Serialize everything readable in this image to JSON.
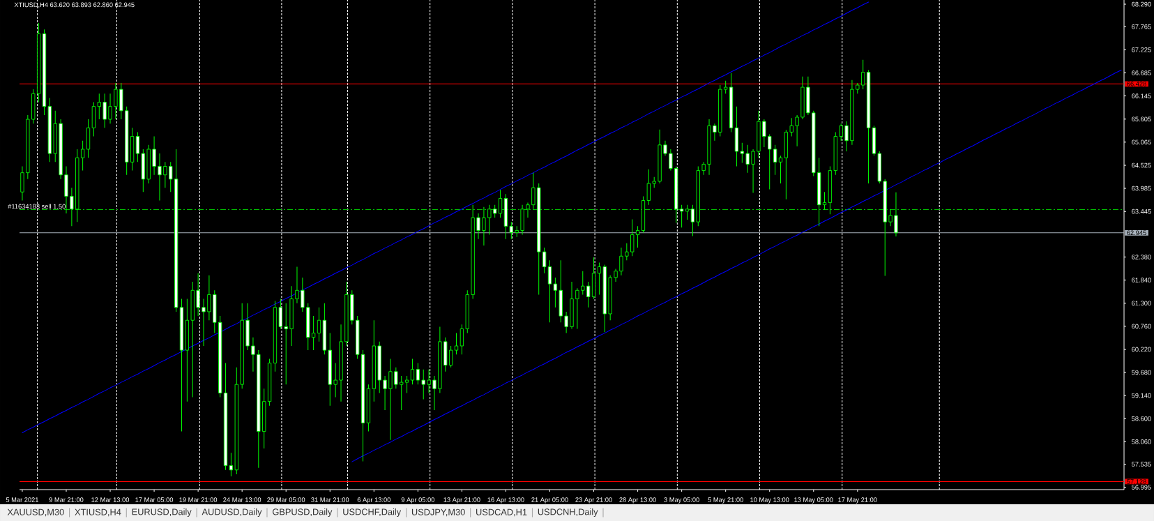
{
  "chart_data": {
    "type": "candlestick",
    "title": "XTIUSD,H4 63.620 63.893 62.860 62.945",
    "color": "#00ff00",
    "categories": [
      "5 Mar 2021",
      null,
      null,
      null,
      null,
      null,
      null,
      null,
      "9 Mar 21:00",
      null,
      null,
      null,
      null,
      null,
      null,
      null,
      "12 Mar 13:00",
      null,
      null,
      null,
      null,
      null,
      null,
      null,
      "17 Mar 05:00",
      null,
      null,
      null,
      null,
      null,
      null,
      null,
      "19 Mar 21:00",
      null,
      null,
      null,
      null,
      null,
      null,
      null,
      "24 Mar 13:00",
      null,
      null,
      null,
      null,
      null,
      null,
      null,
      "29 Mar 05:00",
      null,
      null,
      null,
      null,
      null,
      null,
      null,
      "31 Mar 21:00",
      null,
      null,
      null,
      null,
      null,
      null,
      null,
      "6 Apr 13:00",
      null,
      null,
      null,
      null,
      null,
      null,
      null,
      "9 Apr 05:00",
      null,
      null,
      null,
      null,
      null,
      null,
      null,
      "13 Apr 21:00",
      null,
      null,
      null,
      null,
      null,
      null,
      null,
      "16 Apr 13:00",
      null,
      null,
      null,
      null,
      null,
      null,
      null,
      "21 Apr 05:00",
      null,
      null,
      null,
      null,
      null,
      null,
      null,
      "23 Apr 21:00",
      null,
      null,
      null,
      null,
      null,
      null,
      null,
      "28 Apr 13:00",
      null,
      null,
      null,
      null,
      null,
      null,
      null,
      "3 May 05:00",
      null,
      null,
      null,
      null,
      null,
      null,
      null,
      "5 May 21:00",
      null,
      null,
      null,
      null,
      null,
      null,
      null,
      "10 May 13:00",
      null,
      null,
      null,
      null,
      null,
      null,
      null,
      "13 May 05:00",
      null,
      null,
      null,
      null,
      null,
      null,
      null,
      "17 May 21:00",
      null,
      null,
      null,
      null,
      null,
      null,
      null,
      null,
      null,
      null,
      null,
      null,
      null,
      null,
      null,
      null,
      null,
      null,
      null,
      null,
      null,
      null,
      null,
      null,
      null,
      null,
      null,
      null,
      null,
      null,
      null,
      null,
      null,
      null,
      null,
      null,
      null,
      null,
      null,
      null,
      null,
      null,
      null,
      null,
      null,
      null,
      null,
      null
    ],
    "ohlc": [
      [
        63.9,
        64.5,
        63.7,
        64.35
      ],
      [
        64.35,
        65.7,
        64.2,
        65.6
      ],
      [
        65.6,
        66.3,
        65.5,
        66.2
      ],
      [
        66.2,
        67.85,
        66.0,
        67.6
      ],
      [
        67.6,
        67.7,
        65.7,
        65.9
      ],
      [
        65.9,
        66.1,
        64.6,
        64.8
      ],
      [
        64.8,
        65.8,
        64.6,
        65.5
      ],
      [
        65.5,
        65.6,
        64.2,
        64.3
      ],
      [
        64.3,
        64.5,
        63.4,
        63.8
      ],
      [
        63.8,
        64.0,
        63.1,
        63.5
      ],
      [
        63.5,
        64.9,
        63.2,
        64.7
      ],
      [
        64.7,
        65.1,
        64.4,
        64.9
      ],
      [
        64.9,
        65.6,
        64.7,
        65.4
      ],
      [
        65.4,
        66.0,
        65.2,
        65.9
      ],
      [
        65.9,
        66.2,
        65.6,
        66.0
      ],
      [
        66.0,
        66.2,
        65.4,
        65.6
      ],
      [
        65.6,
        66.2,
        65.5,
        65.9
      ],
      [
        65.9,
        66.45,
        65.6,
        66.3
      ],
      [
        66.3,
        66.45,
        65.6,
        65.8
      ],
      [
        65.8,
        65.9,
        64.3,
        64.6
      ],
      [
        64.6,
        65.4,
        64.4,
        65.2
      ],
      [
        65.2,
        65.3,
        64.6,
        64.8
      ],
      [
        64.8,
        64.9,
        63.9,
        64.2
      ],
      [
        64.2,
        65.0,
        64.1,
        64.9
      ],
      [
        64.9,
        65.2,
        64.3,
        64.5
      ],
      [
        64.5,
        64.8,
        63.7,
        64.3
      ],
      [
        64.3,
        64.6,
        64.0,
        64.5
      ],
      [
        64.5,
        64.6,
        63.9,
        64.2
      ],
      [
        64.2,
        64.9,
        61.1,
        61.2
      ],
      [
        61.2,
        61.4,
        58.3,
        60.2
      ],
      [
        60.2,
        61.4,
        59.0,
        60.9
      ],
      [
        60.9,
        61.8,
        59.1,
        61.6
      ],
      [
        61.6,
        62.0,
        61.0,
        61.2
      ],
      [
        61.2,
        61.4,
        60.3,
        61.1
      ],
      [
        61.1,
        61.95,
        60.9,
        61.5
      ],
      [
        61.5,
        61.6,
        60.6,
        60.85
      ],
      [
        60.85,
        61.0,
        59.1,
        59.2
      ],
      [
        59.2,
        59.9,
        57.4,
        57.5
      ],
      [
        57.5,
        57.8,
        57.25,
        57.4
      ],
      [
        57.4,
        59.8,
        57.3,
        59.4
      ],
      [
        59.4,
        61.3,
        59.3,
        60.9
      ],
      [
        60.9,
        61.3,
        60.2,
        60.3
      ],
      [
        60.3,
        60.5,
        59.7,
        60.1
      ],
      [
        60.1,
        60.2,
        57.45,
        58.3
      ],
      [
        58.3,
        59.3,
        57.9,
        59.0
      ],
      [
        59.0,
        60.0,
        58.9,
        59.9
      ],
      [
        59.9,
        61.35,
        59.7,
        61.2
      ],
      [
        61.2,
        61.4,
        60.7,
        60.75
      ],
      [
        60.75,
        61.3,
        59.4,
        60.7
      ],
      [
        60.7,
        61.7,
        60.3,
        61.4
      ],
      [
        61.4,
        62.15,
        61.3,
        61.6
      ],
      [
        61.6,
        61.9,
        61.1,
        61.2
      ],
      [
        61.2,
        61.3,
        60.2,
        60.5
      ],
      [
        60.5,
        61.0,
        60.2,
        60.6
      ],
      [
        60.6,
        61.2,
        60.4,
        60.9
      ],
      [
        60.9,
        61.3,
        60.1,
        60.2
      ],
      [
        60.2,
        60.6,
        58.9,
        59.4
      ],
      [
        59.4,
        59.9,
        59.1,
        59.5
      ],
      [
        59.5,
        60.8,
        59.0,
        60.4
      ],
      [
        60.4,
        61.8,
        60.3,
        61.5
      ],
      [
        61.5,
        61.6,
        60.8,
        60.9
      ],
      [
        60.9,
        61.0,
        60.0,
        60.1
      ],
      [
        60.1,
        60.2,
        57.6,
        58.5
      ],
      [
        58.5,
        59.4,
        58.3,
        59.3
      ],
      [
        59.3,
        60.9,
        59.0,
        60.3
      ],
      [
        60.3,
        60.4,
        59.2,
        59.5
      ],
      [
        59.5,
        59.6,
        58.8,
        59.3
      ],
      [
        59.3,
        60.0,
        58.1,
        59.7
      ],
      [
        59.7,
        59.8,
        59.3,
        59.4
      ],
      [
        59.4,
        59.6,
        58.8,
        59.45
      ],
      [
        59.45,
        59.6,
        59.2,
        59.5
      ],
      [
        59.5,
        60.0,
        59.4,
        59.75
      ],
      [
        59.75,
        59.9,
        59.4,
        59.5
      ],
      [
        59.5,
        59.75,
        59.05,
        59.4
      ],
      [
        59.4,
        59.75,
        59.2,
        59.5
      ],
      [
        59.5,
        59.6,
        58.8,
        59.3
      ],
      [
        59.3,
        60.75,
        59.2,
        60.4
      ],
      [
        60.4,
        60.5,
        59.7,
        59.85
      ],
      [
        59.85,
        60.3,
        59.8,
        60.2
      ],
      [
        60.2,
        60.6,
        60.1,
        60.3
      ],
      [
        60.3,
        60.8,
        60.1,
        60.7
      ],
      [
        60.7,
        61.6,
        60.6,
        61.5
      ],
      [
        61.5,
        63.6,
        61.4,
        63.3
      ],
      [
        63.3,
        63.4,
        62.8,
        63.0
      ],
      [
        63.0,
        63.55,
        62.65,
        63.3
      ],
      [
        63.3,
        63.6,
        62.9,
        63.5
      ],
      [
        63.5,
        63.6,
        63.3,
        63.4
      ],
      [
        63.4,
        63.95,
        63.3,
        63.75
      ],
      [
        63.75,
        63.85,
        62.8,
        63.1
      ],
      [
        63.1,
        63.2,
        62.8,
        62.95
      ],
      [
        62.95,
        63.1,
        62.85,
        63.0
      ],
      [
        63.0,
        63.6,
        62.9,
        63.5
      ],
      [
        63.5,
        63.65,
        63.3,
        63.6
      ],
      [
        63.6,
        64.35,
        63.5,
        64.0
      ],
      [
        64.0,
        64.1,
        61.5,
        62.5
      ],
      [
        62.5,
        62.6,
        62.0,
        62.15
      ],
      [
        62.15,
        62.3,
        60.85,
        61.75
      ],
      [
        61.75,
        61.9,
        61.2,
        61.6
      ],
      [
        61.6,
        62.3,
        60.85,
        61.0
      ],
      [
        61.0,
        61.1,
        60.6,
        60.75
      ],
      [
        60.75,
        61.8,
        60.7,
        61.4
      ],
      [
        61.4,
        61.65,
        60.7,
        61.6
      ],
      [
        61.6,
        62.05,
        61.5,
        61.7
      ],
      [
        61.7,
        61.8,
        61.2,
        61.45
      ],
      [
        61.45,
        62.37,
        61.4,
        62.0
      ],
      [
        62.0,
        62.25,
        61.5,
        62.15
      ],
      [
        62.15,
        62.2,
        60.62,
        61.05
      ],
      [
        61.05,
        61.95,
        60.9,
        61.9
      ],
      [
        61.9,
        62.1,
        61.8,
        62.05
      ],
      [
        62.05,
        62.6,
        61.95,
        62.4
      ],
      [
        62.4,
        62.7,
        62.3,
        62.5
      ],
      [
        62.5,
        63.26,
        62.4,
        62.9
      ],
      [
        62.9,
        63.1,
        62.6,
        63.0
      ],
      [
        63.0,
        63.8,
        62.95,
        63.7
      ],
      [
        63.7,
        64.43,
        63.6,
        64.1
      ],
      [
        64.1,
        64.25,
        64.0,
        64.15
      ],
      [
        64.15,
        65.36,
        64.1,
        65.0
      ],
      [
        65.0,
        65.1,
        64.75,
        64.8
      ],
      [
        64.8,
        64.9,
        64.4,
        64.45
      ],
      [
        64.45,
        64.5,
        63.18,
        63.5
      ],
      [
        63.5,
        63.6,
        63.07,
        63.45
      ],
      [
        63.45,
        63.6,
        63.25,
        63.5
      ],
      [
        63.5,
        63.6,
        62.87,
        63.2
      ],
      [
        63.2,
        64.5,
        63.1,
        64.4
      ],
      [
        64.4,
        64.6,
        64.3,
        64.55
      ],
      [
        64.55,
        65.6,
        64.3,
        65.45
      ],
      [
        65.45,
        65.5,
        65.1,
        65.3
      ],
      [
        65.3,
        66.4,
        65.2,
        66.3
      ],
      [
        66.3,
        66.5,
        66.2,
        66.35
      ],
      [
        66.35,
        66.68,
        65.3,
        65.4
      ],
      [
        65.4,
        65.9,
        64.5,
        64.85
      ],
      [
        64.85,
        65.05,
        64.58,
        64.8
      ],
      [
        64.8,
        65.0,
        64.35,
        64.55
      ],
      [
        64.55,
        64.9,
        63.88,
        64.85
      ],
      [
        64.85,
        65.8,
        64.7,
        65.55
      ],
      [
        65.55,
        65.6,
        64.95,
        65.2
      ],
      [
        65.2,
        65.25,
        63.96,
        64.9
      ],
      [
        64.9,
        65.0,
        64.3,
        64.6
      ],
      [
        64.6,
        64.75,
        64.1,
        64.7
      ],
      [
        64.7,
        65.35,
        63.73,
        65.3
      ],
      [
        65.3,
        65.63,
        65.2,
        65.45
      ],
      [
        65.45,
        65.7,
        64.97,
        65.65
      ],
      [
        65.65,
        66.6,
        65.6,
        66.35
      ],
      [
        66.35,
        66.6,
        65.7,
        65.75
      ],
      [
        65.75,
        65.8,
        64.27,
        64.35
      ],
      [
        64.35,
        64.7,
        63.1,
        63.6
      ],
      [
        63.6,
        63.9,
        63.49,
        63.65
      ],
      [
        63.65,
        64.5,
        63.38,
        64.4
      ],
      [
        64.4,
        65.3,
        64.3,
        65.2
      ],
      [
        65.2,
        65.5,
        65.1,
        65.45
      ],
      [
        65.45,
        65.55,
        64.85,
        65.1
      ],
      [
        65.1,
        66.52,
        65.0,
        66.3
      ],
      [
        66.3,
        66.45,
        66.2,
        66.4
      ],
      [
        66.4,
        66.99,
        66.3,
        66.7
      ],
      [
        66.7,
        66.75,
        64.1,
        65.4
      ],
      [
        65.4,
        65.45,
        64.75,
        64.8
      ],
      [
        64.8,
        64.85,
        64.1,
        64.15
      ],
      [
        64.15,
        64.2,
        61.94,
        63.2
      ],
      [
        63.2,
        63.5,
        63.1,
        63.35
      ],
      [
        63.35,
        63.893,
        62.86,
        62.945
      ],
      null,
      null,
      null,
      null,
      null,
      null,
      null,
      null,
      null,
      null,
      null,
      null,
      null,
      null,
      null,
      null,
      null,
      null,
      null,
      null,
      null,
      null,
      null,
      null,
      null,
      null,
      null,
      null,
      null,
      null,
      null,
      null,
      null,
      null,
      null,
      null,
      null,
      null,
      null,
      null,
      null
    ],
    "series": [
      {
        "type": "line",
        "color": "#0000ff",
        "values": [
          58.27,
          58.34,
          58.4,
          58.47,
          58.53,
          58.6,
          58.66,
          58.73,
          58.79,
          58.86,
          58.92,
          58.99,
          59.05,
          59.12,
          59.19,
          59.25,
          59.32,
          59.38,
          59.45,
          59.51,
          59.58,
          59.64,
          59.71,
          59.77,
          59.84,
          59.91,
          59.97,
          60.04,
          60.1,
          60.17,
          60.23,
          60.3,
          60.36,
          60.43,
          60.49,
          60.56,
          60.62,
          60.69,
          60.76,
          60.82,
          60.89,
          60.95,
          61.02,
          61.08,
          61.15,
          61.21,
          61.28,
          61.34,
          61.41,
          61.47,
          61.54,
          61.61,
          61.67,
          61.74,
          61.8,
          61.87,
          61.93,
          62.0,
          62.06,
          62.13,
          62.19,
          62.26,
          62.32,
          62.39,
          62.46,
          62.52,
          62.59,
          62.65,
          62.72,
          62.78,
          62.85,
          62.91,
          62.98,
          63.04,
          63.11,
          63.18,
          63.24,
          63.31,
          63.37,
          63.44,
          63.5,
          63.57,
          63.63,
          63.7,
          63.76,
          63.83,
          63.89,
          63.96,
          64.03,
          64.09,
          64.16,
          64.22,
          64.29,
          64.35,
          64.42,
          64.48,
          64.55,
          64.61,
          64.68,
          64.74,
          64.81,
          64.88,
          64.94,
          65.01,
          65.07,
          65.14,
          65.2,
          65.27,
          65.33,
          65.4,
          65.46,
          65.53,
          65.59,
          65.66,
          65.73,
          65.79,
          65.86,
          65.92,
          65.99,
          66.05,
          66.12,
          66.18,
          66.25,
          66.31,
          66.38,
          66.45,
          66.51,
          66.58,
          66.64,
          66.71,
          66.77,
          66.84,
          66.9,
          66.97,
          67.03,
          67.1,
          67.16,
          67.23,
          67.3,
          67.36,
          67.43,
          67.49,
          67.56,
          67.62,
          67.69,
          67.75,
          67.82,
          67.88,
          67.95,
          68.01,
          68.08,
          68.15,
          68.21,
          68.28,
          68.34,
          null,
          null,
          null,
          null,
          null,
          null,
          null,
          null,
          null,
          null,
          null,
          null,
          null,
          null,
          null,
          null,
          null,
          null,
          null,
          null,
          null,
          null,
          null,
          null,
          null,
          null,
          null,
          null,
          null,
          null,
          null,
          null,
          null,
          null,
          null,
          null,
          null,
          null,
          null,
          null,
          null,
          null,
          null,
          null,
          null,
          null
        ]
      },
      {
        "type": "line",
        "color": "#0000ff",
        "values": [
          null,
          null,
          null,
          null,
          null,
          null,
          null,
          null,
          null,
          null,
          null,
          null,
          null,
          null,
          null,
          null,
          null,
          null,
          null,
          null,
          null,
          null,
          null,
          null,
          null,
          null,
          null,
          null,
          null,
          null,
          null,
          null,
          null,
          null,
          null,
          null,
          null,
          null,
          null,
          null,
          null,
          null,
          null,
          null,
          null,
          null,
          null,
          null,
          null,
          null,
          null,
          null,
          null,
          null,
          null,
          null,
          null,
          null,
          null,
          null,
          57.59,
          57.66,
          57.73,
          57.79,
          57.86,
          57.92,
          57.99,
          58.05,
          58.12,
          58.18,
          58.25,
          58.31,
          58.38,
          58.44,
          58.51,
          58.58,
          58.64,
          58.71,
          58.77,
          58.84,
          58.9,
          58.97,
          59.03,
          59.1,
          59.16,
          59.23,
          59.3,
          59.36,
          59.43,
          59.49,
          59.56,
          59.62,
          59.69,
          59.75,
          59.82,
          59.88,
          59.95,
          60.01,
          60.08,
          60.15,
          60.21,
          60.28,
          60.34,
          60.41,
          60.47,
          60.54,
          60.6,
          60.67,
          60.73,
          60.8,
          60.86,
          60.93,
          61.0,
          61.06,
          61.13,
          61.19,
          61.26,
          61.32,
          61.39,
          61.45,
          61.52,
          61.58,
          61.65,
          61.71,
          61.78,
          61.85,
          61.91,
          61.98,
          62.04,
          62.11,
          62.17,
          62.24,
          62.3,
          62.37,
          62.43,
          62.5,
          62.57,
          62.63,
          62.7,
          62.76,
          62.83,
          62.89,
          62.96,
          63.02,
          63.09,
          63.15,
          63.22,
          63.28,
          63.35,
          63.42,
          63.48,
          63.55,
          63.61,
          63.68,
          63.74,
          63.81,
          63.87,
          63.94,
          64.0,
          64.07,
          64.13,
          64.2,
          64.27,
          64.33,
          64.4,
          64.46,
          64.53,
          64.59,
          64.66,
          64.72,
          64.79,
          64.85,
          64.92,
          64.98,
          65.05,
          65.12,
          65.18,
          65.25,
          65.31,
          65.38,
          65.44,
          65.51,
          65.57,
          65.64,
          65.7,
          65.77,
          65.84,
          65.9,
          65.97,
          66.03,
          66.1,
          66.16,
          66.23,
          66.29,
          66.36,
          66.42,
          66.49,
          66.55,
          66.62,
          66.69,
          66.75
        ]
      }
    ],
    "ylim": [
      56.94,
      68.39
    ],
    "yticks": [
      {
        "value": 68.29,
        "label": "68.290"
      },
      67.765,
      67.225,
      66.685,
      66.145,
      65.605,
      65.065,
      64.525,
      63.985,
      63.445,
      {
        "value": 62.38,
        "label": "62.380"
      },
      {
        "value": 61.84,
        "label": "61.840"
      },
      {
        "value": 61.3,
        "label": "61.300"
      },
      {
        "value": 60.76,
        "label": "60.760"
      },
      {
        "value": 60.22,
        "label": "60.220"
      },
      {
        "value": 59.68,
        "label": "59.680"
      },
      {
        "value": 59.14,
        "label": "59.140"
      },
      {
        "value": 58.6,
        "label": "58.600"
      },
      {
        "value": 58.06,
        "label": "58.060"
      },
      57.535,
      56.995
    ],
    "ref_lines": [
      {
        "axis": "y",
        "value": 66.428,
        "label": "66.428",
        "color": "#ff0000"
      },
      {
        "axis": "y",
        "value": 57.128,
        "label": "57.128",
        "color": "#ff0000"
      },
      {
        "axis": "y",
        "value": 62.945,
        "label": "62.945",
        "color": "#a9b3bd"
      },
      {
        "axis": "y",
        "value": 63.49,
        "label": "#11634183 sell 1.50",
        "color": "#00c000",
        "line_style": "dashdot"
      }
    ],
    "annotations": [
      "XAUUSD,M30",
      "XTIUSD,H4",
      "EURUSD,Daily",
      "AUDUSD,Daily",
      "GBPUSD,Daily",
      "USDCHF,Daily",
      "USDJPY,M30",
      "USDCAD,H1",
      "USDCNH,Daily"
    ]
  }
}
